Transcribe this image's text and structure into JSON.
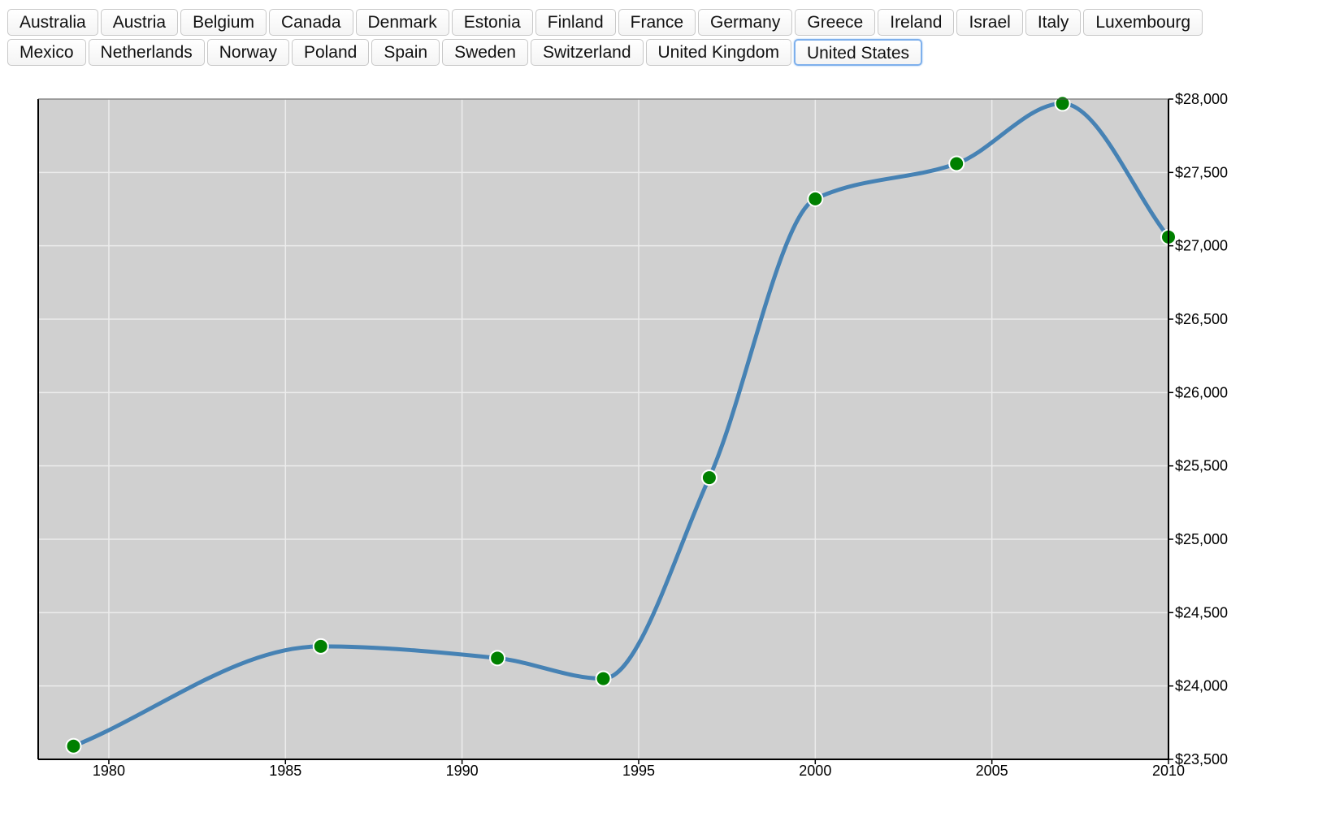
{
  "toolbar": {
    "rows": [
      [
        "Australia",
        "Austria",
        "Belgium",
        "Canada",
        "Denmark",
        "Estonia",
        "Finland",
        "France",
        "Germany",
        "Greece",
        "Ireland",
        "Israel",
        "Italy",
        "Luxembourg"
      ],
      [
        "Mexico",
        "Netherlands",
        "Norway",
        "Poland",
        "Spain",
        "Sweden",
        "Switzerland",
        "United Kingdom",
        "United States"
      ]
    ],
    "selected": "United States"
  },
  "colors": {
    "plot_background": "#d0d0d0",
    "grid": "#ececec",
    "line": "#4682b4",
    "point_fill": "#008000",
    "point_stroke": "#ffffff",
    "axis": "#000000"
  },
  "chart_data": {
    "type": "line",
    "title": "",
    "xlabel": "",
    "ylabel": "",
    "xlim": [
      1978,
      2010
    ],
    "ylim": [
      23500,
      28000
    ],
    "x_ticks": [
      1980,
      1985,
      1990,
      1995,
      2000,
      2005,
      2010
    ],
    "y_ticks": [
      23500,
      24000,
      24500,
      25000,
      25500,
      26000,
      26500,
      27000,
      27500,
      28000
    ],
    "y_tick_labels": [
      "$23,500",
      "$24,000",
      "$24,500",
      "$25,000",
      "$25,500",
      "$26,000",
      "$26,500",
      "$27,000",
      "$27,500",
      "$28,000"
    ],
    "y_axis_position": "right",
    "grid": true,
    "legend": false,
    "curve": "smooth",
    "series": [
      {
        "x": [
          1979,
          1986,
          1991,
          1994,
          1997,
          2000,
          2004,
          2007,
          2010
        ],
        "y": [
          23590,
          24270,
          24190,
          24050,
          25420,
          27320,
          27560,
          27970,
          27060
        ]
      }
    ]
  }
}
